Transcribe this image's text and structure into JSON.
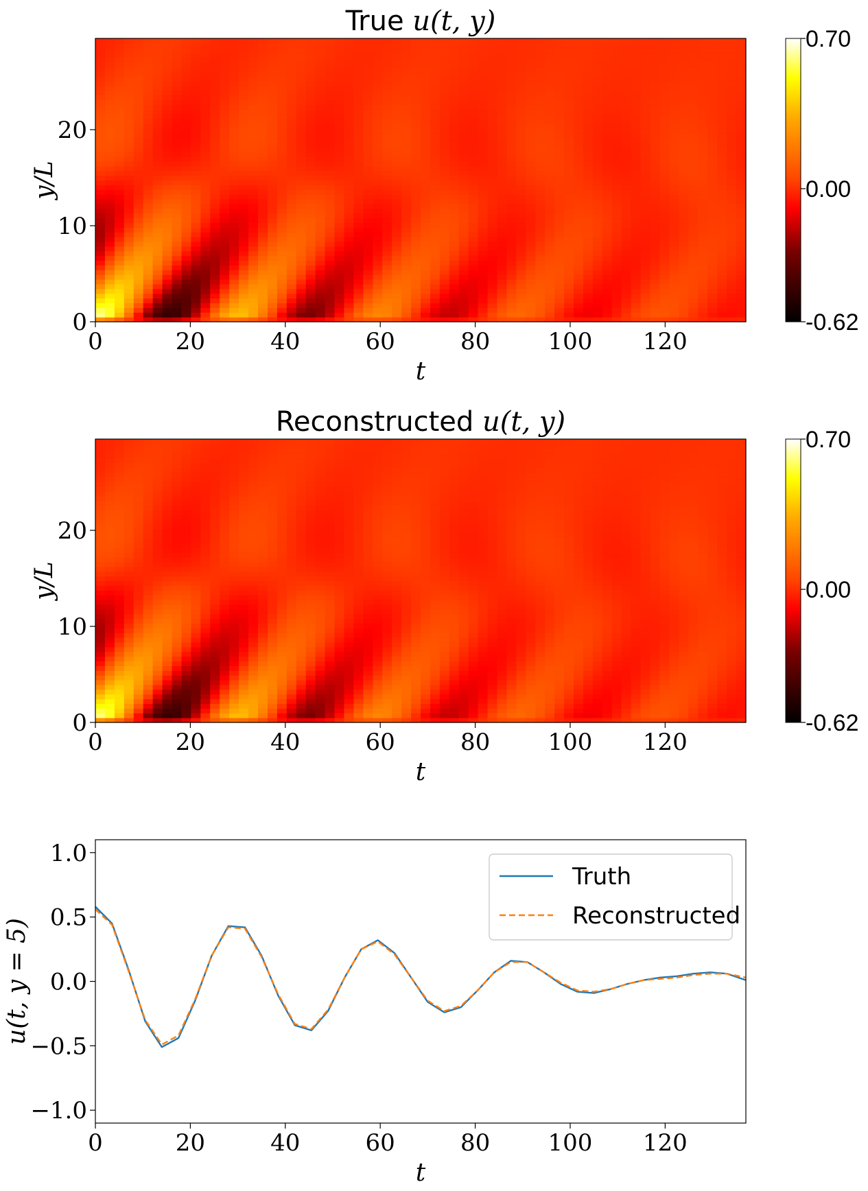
{
  "chart_data": [
    {
      "type": "heatmap",
      "title_prefix": "True",
      "title_math": "u(t, y)",
      "xlabel": "t",
      "ylabel": "y/L",
      "xlim": [
        0,
        137
      ],
      "ylim": [
        0,
        29.5
      ],
      "xticks": [
        0,
        20,
        40,
        60,
        80,
        100,
        120
      ],
      "yticks": [
        0,
        10,
        20
      ],
      "colorbar": {
        "min": -0.62,
        "max": 0.7,
        "tick_labels": [
          "0.70",
          "0.00",
          "-0.62"
        ],
        "colormap": "hot"
      }
    },
    {
      "type": "heatmap",
      "title_prefix": "Reconstructed",
      "title_math": "u(t, y)",
      "xlabel": "t",
      "ylabel": "y/L",
      "xlim": [
        0,
        137
      ],
      "ylim": [
        0,
        29.5
      ],
      "xticks": [
        0,
        20,
        40,
        60,
        80,
        100,
        120
      ],
      "yticks": [
        0,
        10,
        20
      ],
      "colorbar": {
        "min": -0.62,
        "max": 0.7,
        "tick_labels": [
          "0.70",
          "0.00",
          "-0.62"
        ],
        "colormap": "hot"
      }
    },
    {
      "type": "line",
      "xlabel": "t",
      "ylabel": "u(t, y = 5)",
      "xlim": [
        0,
        137
      ],
      "ylim": [
        -1.1,
        1.1
      ],
      "xticks": [
        0,
        20,
        40,
        60,
        80,
        100,
        120
      ],
      "yticks": [
        1.0,
        0.5,
        0.0,
        -0.5,
        -1.0
      ],
      "ytick_labels": [
        "1.0",
        "0.5",
        "0.0",
        "−0.5",
        "−1.0"
      ],
      "legend_position": "top-right",
      "x": [
        0,
        3.5,
        7,
        10.5,
        14,
        17.5,
        21,
        24.5,
        28,
        31.5,
        35,
        38.5,
        42,
        45.5,
        49,
        52.5,
        56,
        59.5,
        63,
        66.5,
        70,
        73.5,
        77,
        80.5,
        84,
        87.5,
        91,
        94.5,
        98,
        101.5,
        105,
        108.5,
        112,
        115.5,
        119,
        122.5,
        126,
        129.5,
        133,
        137
      ],
      "series": [
        {
          "name": "Truth",
          "color": "#1f77b4",
          "style": "solid",
          "values": [
            0.58,
            0.45,
            0.09,
            -0.31,
            -0.51,
            -0.44,
            -0.15,
            0.2,
            0.43,
            0.42,
            0.2,
            -0.11,
            -0.34,
            -0.38,
            -0.23,
            0.03,
            0.25,
            0.32,
            0.22,
            0.03,
            -0.16,
            -0.24,
            -0.2,
            -0.07,
            0.07,
            0.16,
            0.15,
            0.07,
            -0.02,
            -0.08,
            -0.09,
            -0.06,
            -0.02,
            0.01,
            0.03,
            0.04,
            0.06,
            0.07,
            0.06,
            0.01
          ]
        },
        {
          "name": "Reconstructed",
          "color": "#ff7f0e",
          "style": "dashed",
          "values": [
            0.56,
            0.44,
            0.08,
            -0.3,
            -0.49,
            -0.42,
            -0.14,
            0.2,
            0.42,
            0.41,
            0.19,
            -0.1,
            -0.33,
            -0.37,
            -0.22,
            0.03,
            0.25,
            0.31,
            0.21,
            0.03,
            -0.15,
            -0.23,
            -0.19,
            -0.07,
            0.07,
            0.15,
            0.15,
            0.07,
            -0.01,
            -0.07,
            -0.08,
            -0.06,
            -0.02,
            0.01,
            0.02,
            0.03,
            0.05,
            0.06,
            0.06,
            0.03
          ]
        }
      ]
    }
  ]
}
